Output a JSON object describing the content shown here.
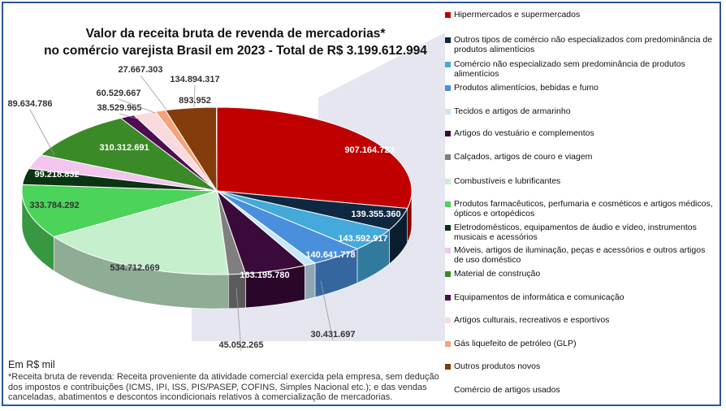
{
  "chart_data": {
    "type": "pie",
    "title_line1": "Valor da receita bruta de revenda de mercadorias*",
    "title_line2": "no comércio varejista Brasil em 2023 - Total de R$ 3.199.612.994",
    "legend_position": "right",
    "slices": [
      {
        "name": "Hipermercados e supermercados",
        "value": 907164723,
        "label": "907.164.723",
        "color": "#c00000"
      },
      {
        "name": "Outros tipos de comércio não especializados com predominância de produtos alimentícios",
        "value": 139355360,
        "label": "139.355.360",
        "color": "#0e2841"
      },
      {
        "name": "Comércio não especializado sem predominância de produtos alimentícios",
        "value": 143592917,
        "label": "143.592.917",
        "color": "#44a9db"
      },
      {
        "name": "Produtos alimentícios, bebidas e fumo",
        "value": 140641778,
        "label": "140.641.778",
        "color": "#4a8fdc"
      },
      {
        "name": "Tecidos e artigos de armarinho",
        "value": 30431697,
        "label": "30.431.697",
        "color": "#c7e7f9"
      },
      {
        "name": "Artigos do vestuário e complementos",
        "value": 163195780,
        "label": "163.195.780",
        "color": "#3a0a3a"
      },
      {
        "name": "Calçados, artigos de couro e viagem",
        "value": 45052265,
        "label": "45.052.265",
        "color": "#7f7f7f"
      },
      {
        "name": "Combustíveis e lubrificantes",
        "value": 534712669,
        "label": "534.712.669",
        "color": "#c6efce"
      },
      {
        "name": "Produtos farmacêuticos, perfumaria e cosméticos e artigos médicos, ópticos e ortopédicos",
        "value": 333784292,
        "label": "333.784.292",
        "color": "#4cd35a"
      },
      {
        "name": "Eletrodomésticos, equipamentos de áudio e vídeo, instrumentos musicais e acessórios",
        "value": 99218832,
        "label": "99.218.832",
        "color": "#0b3412"
      },
      {
        "name": "Móveis, artigos de iluminação, peças e acessórios e outros artigos de uso doméstico",
        "value": 89634786,
        "label": "89.634.786",
        "color": "#f3c6ee"
      },
      {
        "name": "Material de construção",
        "value": 310312691,
        "label": "310.312.691",
        "color": "#3a8a28"
      },
      {
        "name": "Equipamentos de informática e comunicação",
        "value": 38529965,
        "label": "38.529.965",
        "color": "#4e0c52"
      },
      {
        "name": "Artigos culturais, recreativos e esportivos",
        "value": 60529667,
        "label": "60.529.667",
        "color": "#fadadc"
      },
      {
        "name": "Gás liquefeito de petróleo (GLP)",
        "value": 27667303,
        "label": "27.667.303",
        "color": "#f4a47a"
      },
      {
        "name": "Outros produtos novos",
        "value": 134894317,
        "label": "134.894.317",
        "color": "#843c0c"
      },
      {
        "name": "Comércio de artigos usados",
        "value": 893952,
        "label": "893.952",
        "color": "#ffffff"
      }
    ]
  },
  "footer": {
    "unit": "Em R$ mil",
    "note": "*Receita bruta de revenda: Receita proveniente da atividade comercial exercida pela empresa, sem dedução dos impostos e contribuições (ICMS, IPI, ISS, PIS/PASEP, COFINS, Simples Nacional etc.); e das vendas canceladas, abatimentos e descontos incondicionais relativos à comercialização de mercadorias."
  }
}
